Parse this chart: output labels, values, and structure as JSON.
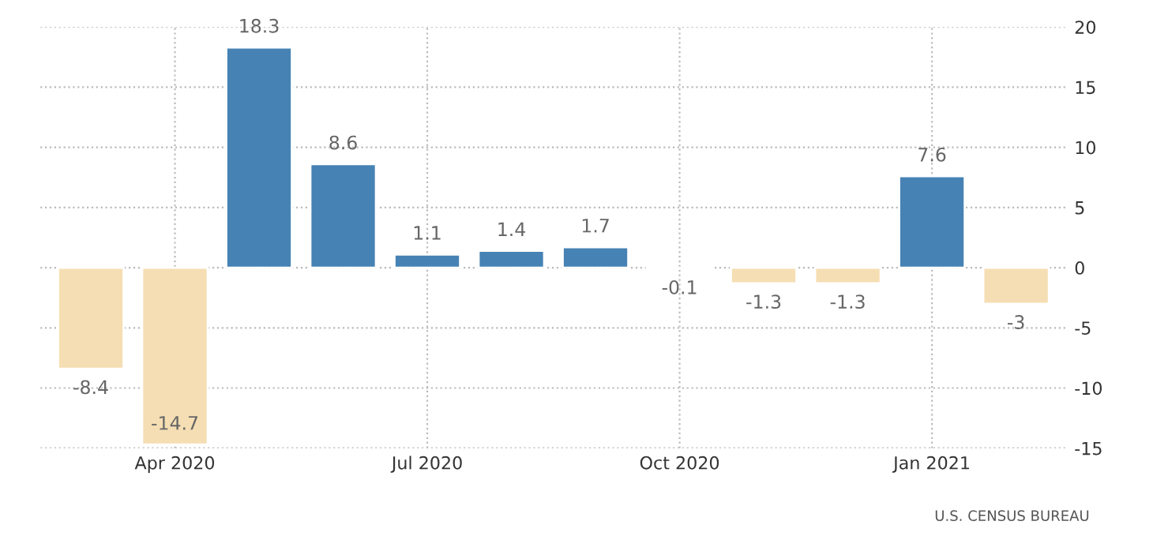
{
  "chart_data": {
    "type": "bar",
    "categories": [
      null,
      "Apr 2020",
      null,
      null,
      "Jul 2020",
      null,
      null,
      "Oct 2020",
      null,
      null,
      "Jan 2021",
      null
    ],
    "values": [
      -8.4,
      -14.7,
      18.3,
      8.6,
      1.1,
      1.4,
      1.7,
      -0.1,
      -1.3,
      -1.3,
      7.6,
      -3
    ],
    "colors": [
      "#f5deb3",
      "#f5deb3",
      "#4682b4",
      "#4682b4",
      "#4682b4",
      "#4682b4",
      "#4682b4",
      "#f5deb3",
      "#f5deb3",
      "#f5deb3",
      "#4682b4",
      "#f5deb3"
    ],
    "ylim": [
      -15,
      20
    ],
    "yticks": [
      -15,
      -10,
      -5,
      0,
      5,
      10,
      15,
      20
    ],
    "grid": true,
    "data_labels": true,
    "annotations": [
      "U.S. CENSUS BUREAU"
    ]
  }
}
